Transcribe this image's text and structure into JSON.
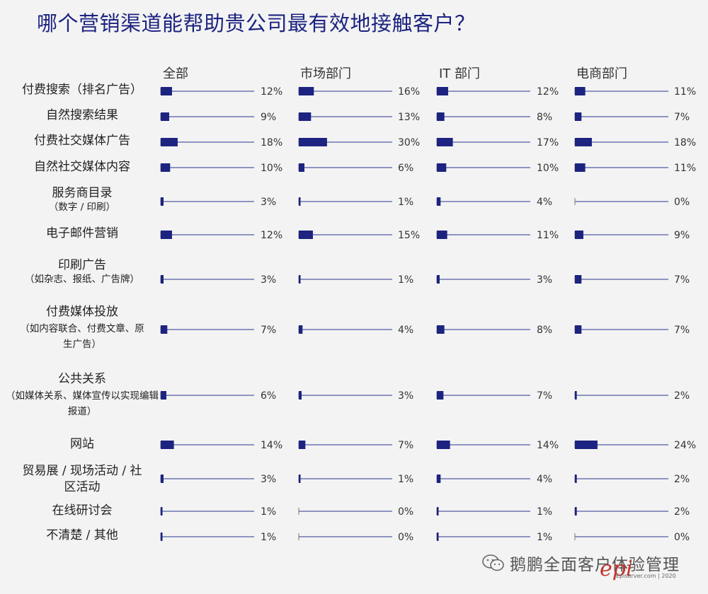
{
  "title": "哪个营销渠道能帮助贵公司最有效地接触客户？",
  "chart_data": {
    "type": "bar",
    "xlim": [
      0,
      100
    ],
    "bar_color": "#1c2380",
    "line_color": "#2a3590",
    "columns": [
      "全部",
      "市场部门",
      "IT 部门",
      "电商部门"
    ],
    "categories": [
      {
        "label": "付费搜索（排名广告）",
        "sublabel": ""
      },
      {
        "label": "自然搜索结果",
        "sublabel": ""
      },
      {
        "label": "付费社交媒体广告",
        "sublabel": ""
      },
      {
        "label": "自然社交媒体内容",
        "sublabel": ""
      },
      {
        "label": "服务商目录",
        "sublabel": "（数字 / 印刷）"
      },
      {
        "label": "电子邮件营销",
        "sublabel": ""
      },
      {
        "label": "印刷广告",
        "sublabel": "（如杂志、报纸、广告牌）"
      },
      {
        "label": "付费媒体投放",
        "sublabel": "（如内容联合、付费文章、原生广告）"
      },
      {
        "label": "公共关系",
        "sublabel": "（如媒体关系、媒体宣传以实现编辑报道）"
      },
      {
        "label": "网站",
        "sublabel": ""
      },
      {
        "label": "贸易展 / 现场活动 / 社区活动",
        "sublabel": ""
      },
      {
        "label": "在线研讨会",
        "sublabel": ""
      },
      {
        "label": "不清楚 / 其他",
        "sublabel": ""
      }
    ],
    "series": [
      {
        "name": "全部",
        "values": [
          12,
          9,
          18,
          10,
          3,
          12,
          3,
          7,
          6,
          14,
          3,
          1,
          1
        ]
      },
      {
        "name": "市场部门",
        "values": [
          16,
          13,
          30,
          6,
          1,
          15,
          1,
          4,
          3,
          7,
          1,
          0,
          0
        ]
      },
      {
        "name": "IT 部门",
        "values": [
          12,
          8,
          17,
          10,
          4,
          11,
          3,
          8,
          7,
          14,
          4,
          1,
          1
        ]
      },
      {
        "name": "电商部门",
        "values": [
          11,
          7,
          18,
          11,
          0,
          9,
          7,
          7,
          2,
          24,
          2,
          2,
          0
        ]
      }
    ],
    "value_suffix": "%"
  },
  "watermark": {
    "text": "鹅鹏全面客户体验管理",
    "brand": "epi",
    "small": "Episerver.com | 2020"
  }
}
